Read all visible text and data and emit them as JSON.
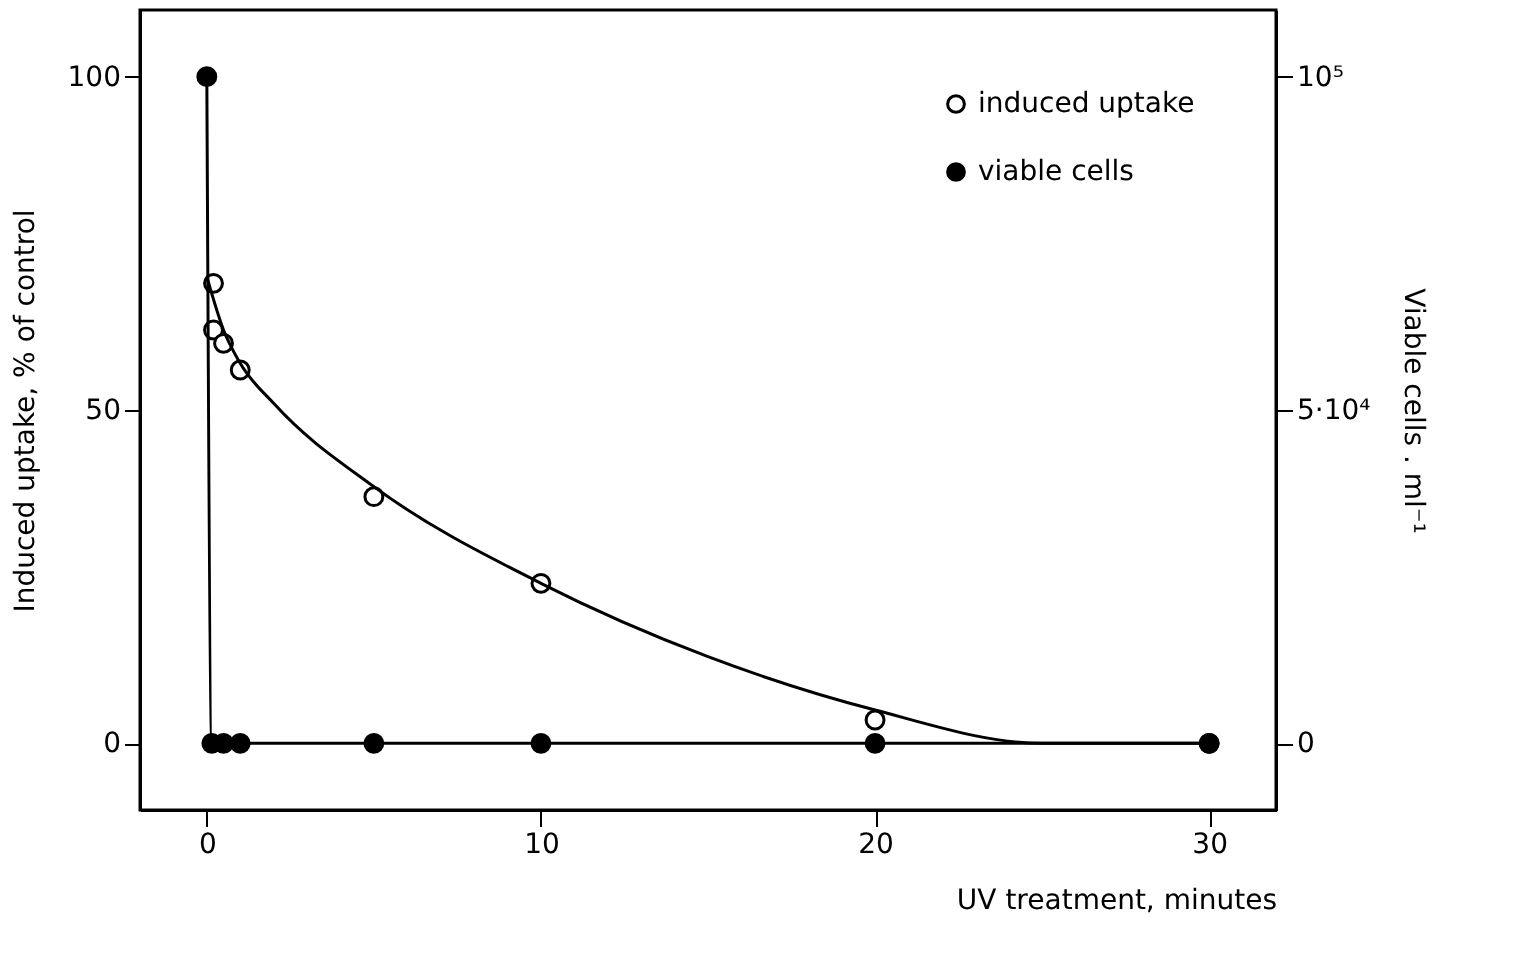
{
  "chart_data": {
    "type": "scatter",
    "xlabel": "UV treatment, minutes",
    "ylabel": "Induced uptake, % of control",
    "y2label": "Viable cells . ml⁻¹",
    "xlim": [
      -2,
      32
    ],
    "xticks": [
      0,
      10,
      20,
      30
    ],
    "ylim": [
      -10,
      110
    ],
    "yticks": [
      0,
      50,
      100
    ],
    "y2lim": [
      -10000,
      110000
    ],
    "y2ticks": [
      0,
      {
        "value": 50000,
        "label": "5·10⁴"
      },
      {
        "value": 100000,
        "label": "10⁵"
      }
    ],
    "grid": false,
    "legend": "top right",
    "series": [
      {
        "name": "induced uptake",
        "marker": "circle",
        "color": "#ffffff",
        "x": [
          0.2,
          0.2,
          0.5,
          1,
          5,
          10,
          20,
          30
        ],
        "values": [
          69,
          62,
          60,
          56,
          37,
          24,
          3.5,
          0
        ]
      },
      {
        "type": "line",
        "marker": "none",
        "line_style": "solid",
        "color": "#000000",
        "x": [
          0,
          0.5,
          1,
          2,
          5,
          10,
          15,
          20,
          25,
          30
        ],
        "values": [
          70,
          62,
          57,
          51,
          38.5,
          24,
          13,
          5,
          0,
          0
        ]
      },
      {
        "name": "viable cells",
        "type": "line",
        "line_style": "solid",
        "axis": "y2",
        "marker": "circle",
        "color": "#000000",
        "x": [
          0,
          0.15,
          0.5,
          1,
          5,
          10,
          20,
          30
        ],
        "values": [
          100000,
          0,
          0,
          0,
          0,
          0,
          0,
          0
        ]
      }
    ]
  }
}
